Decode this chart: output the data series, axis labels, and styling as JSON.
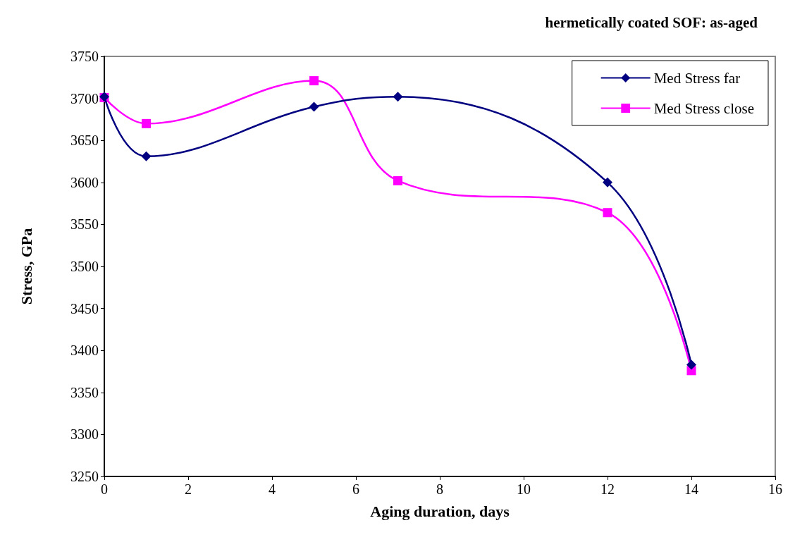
{
  "chart_data": {
    "type": "line",
    "title": "hermetically coated SOF: as-aged",
    "xlabel": "Aging duration, days",
    "ylabel": "Stress, GPa",
    "x": [
      0,
      1,
      5,
      7,
      12,
      14
    ],
    "series": [
      {
        "name": "Med Stress far",
        "color": "#000080",
        "marker": "diamond",
        "values": [
          3702,
          3631,
          3690,
          3702,
          3600,
          3383
        ]
      },
      {
        "name": "Med Stress close",
        "color": "#ff00ff",
        "marker": "square",
        "values": [
          3701,
          3670,
          3721,
          3602,
          3564,
          3376
        ]
      }
    ],
    "xlim": [
      0,
      16
    ],
    "xticks": [
      0,
      2,
      4,
      6,
      8,
      10,
      12,
      14,
      16
    ],
    "ylim": [
      3250,
      3750
    ],
    "yticks": [
      3250,
      3300,
      3350,
      3400,
      3450,
      3500,
      3550,
      3600,
      3650,
      3700,
      3750
    ],
    "grid": false,
    "legend": "top right"
  }
}
